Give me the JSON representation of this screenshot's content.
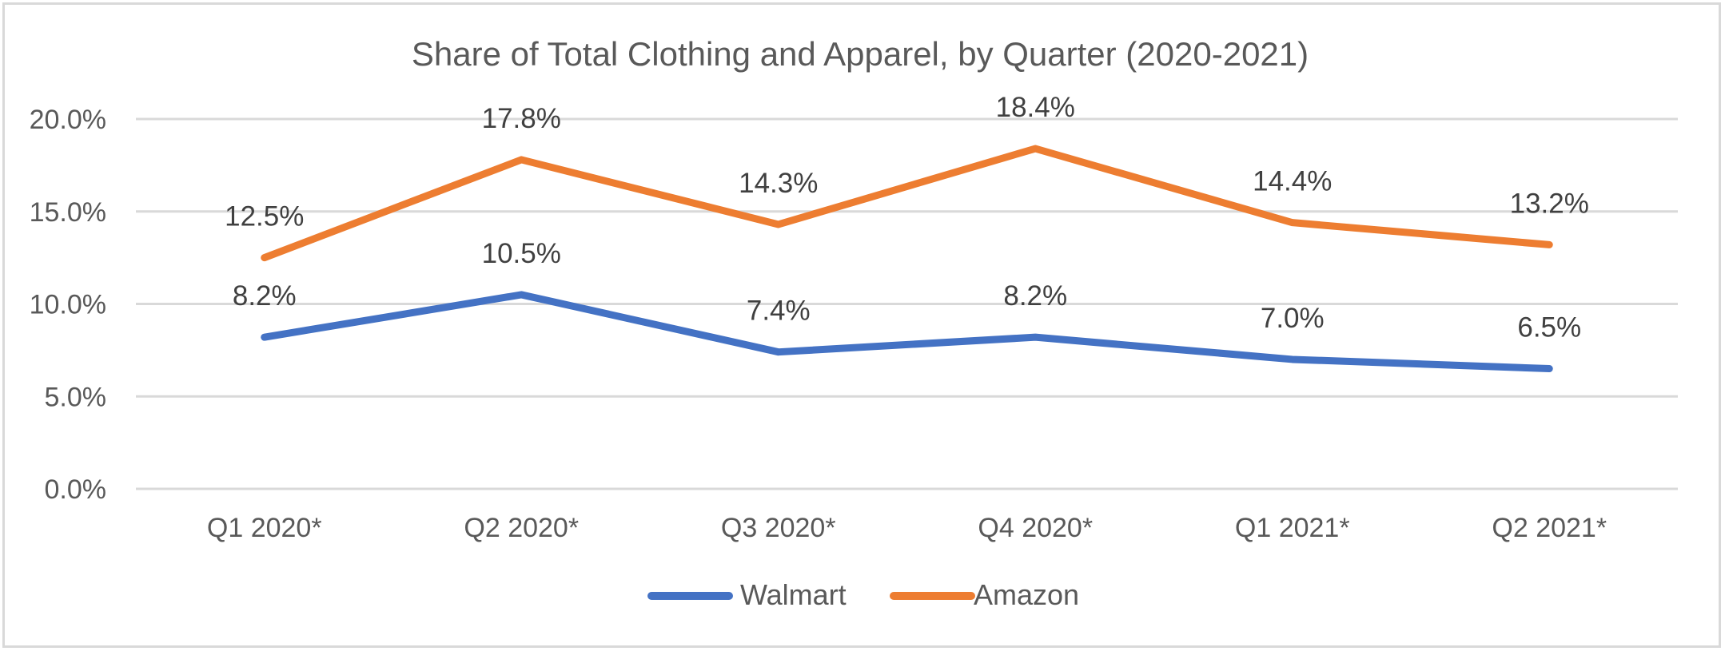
{
  "chart_data": {
    "type": "line",
    "title": "Share of Total Clothing and Apparel, by Quarter (2020-2021)",
    "xlabel": "",
    "ylabel": "",
    "categories": [
      "Q1 2020*",
      "Q2 2020*",
      "Q3 2020*",
      "Q4 2020*",
      "Q1 2021*",
      "Q2 2021*"
    ],
    "series": [
      {
        "name": "Walmart",
        "color": "#4472C4",
        "values": [
          8.2,
          10.5,
          7.4,
          8.2,
          7.0,
          6.5
        ],
        "labels": [
          "8.2%",
          "10.5%",
          "7.4%",
          "8.2%",
          "7.0%",
          "6.5%"
        ]
      },
      {
        "name": "Amazon",
        "color": "#ED7D31",
        "values": [
          12.5,
          17.8,
          14.3,
          18.4,
          14.4,
          13.2
        ],
        "labels": [
          "12.5%",
          "17.8%",
          "14.3%",
          "18.4%",
          "14.4%",
          "13.2%"
        ]
      }
    ],
    "ylim": [
      0,
      20
    ],
    "yticks": [
      0,
      5,
      10,
      15,
      20
    ],
    "ytick_labels": [
      "0.0%",
      "5.0%",
      "10.0%",
      "15.0%",
      "20.0%"
    ],
    "grid": true,
    "legend": {
      "position": "bottom",
      "entries": [
        "Walmart",
        "Amazon"
      ]
    }
  }
}
